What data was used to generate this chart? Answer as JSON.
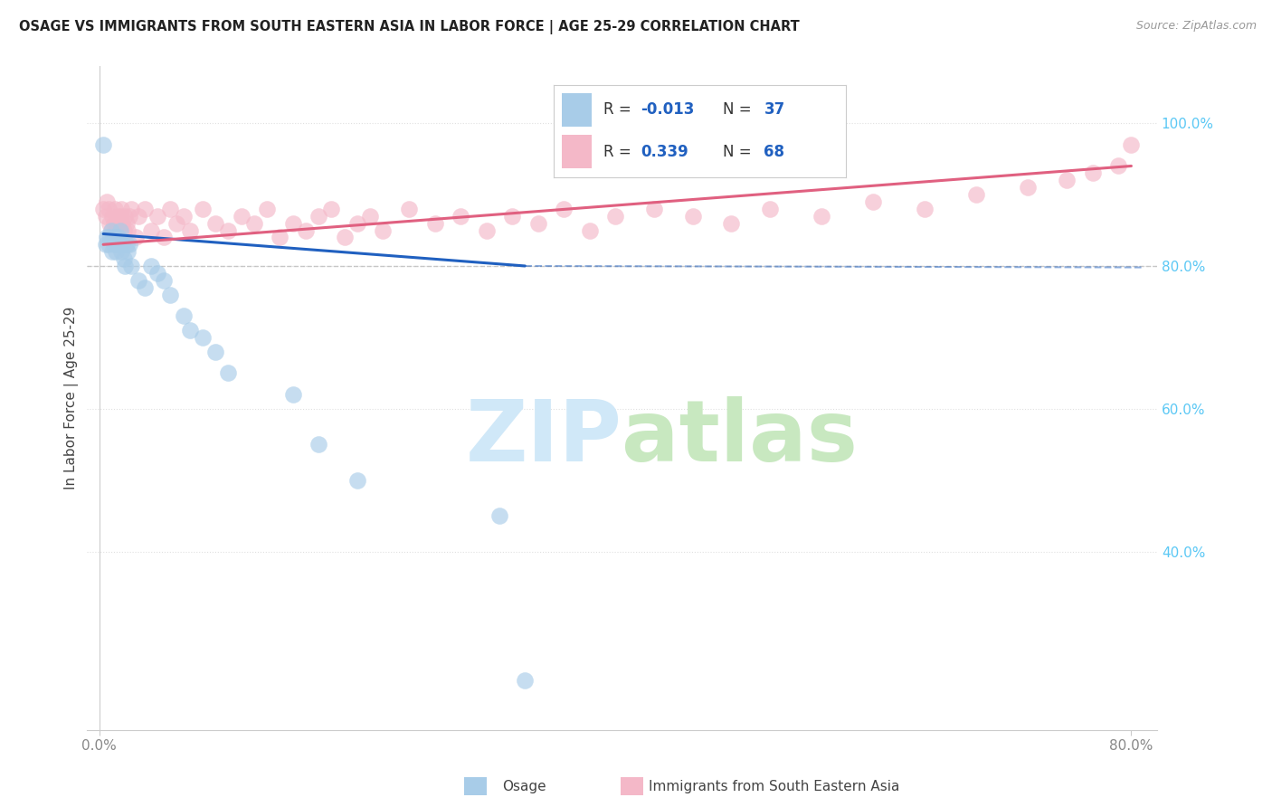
{
  "title": "OSAGE VS IMMIGRANTS FROM SOUTH EASTERN ASIA IN LABOR FORCE | AGE 25-29 CORRELATION CHART",
  "source": "Source: ZipAtlas.com",
  "ylabel": "In Labor Force | Age 25-29",
  "xlim": [
    -0.01,
    0.82
  ],
  "ylim": [
    0.15,
    1.08
  ],
  "yticks_right": [
    0.4,
    0.6,
    0.8,
    1.0
  ],
  "ytick_right_labels": [
    "40.0%",
    "60.0%",
    "80.0%",
    "100.0%"
  ],
  "legend_r_blue": "-0.013",
  "legend_n_blue": "37",
  "legend_r_pink": "0.339",
  "legend_n_pink": "68",
  "blue_color": "#a8cce8",
  "pink_color": "#f4b8c8",
  "trend_blue": "#2060c0",
  "trend_pink": "#e06080",
  "watermark_zip": "ZIP",
  "watermark_atlas": "atlas",
  "dashed_line_y": 0.8,
  "blue_dots_x": [
    0.003,
    0.005,
    0.006,
    0.007,
    0.008,
    0.009,
    0.01,
    0.011,
    0.012,
    0.013,
    0.014,
    0.015,
    0.016,
    0.017,
    0.018,
    0.019,
    0.02,
    0.021,
    0.022,
    0.023,
    0.025,
    0.03,
    0.035,
    0.04,
    0.045,
    0.05,
    0.055,
    0.065,
    0.07,
    0.08,
    0.09,
    0.1,
    0.15,
    0.17,
    0.2,
    0.31,
    0.33
  ],
  "blue_dots_y": [
    0.97,
    0.83,
    0.84,
    0.83,
    0.84,
    0.85,
    0.82,
    0.83,
    0.84,
    0.82,
    0.83,
    0.84,
    0.85,
    0.82,
    0.83,
    0.81,
    0.8,
    0.83,
    0.82,
    0.83,
    0.8,
    0.78,
    0.77,
    0.8,
    0.79,
    0.78,
    0.76,
    0.73,
    0.71,
    0.7,
    0.68,
    0.65,
    0.62,
    0.55,
    0.5,
    0.45,
    0.22
  ],
  "pink_dots_x": [
    0.003,
    0.005,
    0.006,
    0.007,
    0.008,
    0.009,
    0.01,
    0.011,
    0.012,
    0.013,
    0.014,
    0.015,
    0.016,
    0.017,
    0.018,
    0.019,
    0.02,
    0.021,
    0.022,
    0.023,
    0.025,
    0.028,
    0.03,
    0.035,
    0.04,
    0.045,
    0.05,
    0.055,
    0.06,
    0.065,
    0.07,
    0.08,
    0.09,
    0.1,
    0.11,
    0.12,
    0.13,
    0.14,
    0.15,
    0.16,
    0.17,
    0.18,
    0.19,
    0.2,
    0.21,
    0.22,
    0.24,
    0.26,
    0.28,
    0.3,
    0.32,
    0.34,
    0.36,
    0.38,
    0.4,
    0.43,
    0.46,
    0.49,
    0.52,
    0.56,
    0.6,
    0.64,
    0.68,
    0.72,
    0.75,
    0.77,
    0.79,
    0.8
  ],
  "pink_dots_y": [
    0.88,
    0.87,
    0.89,
    0.88,
    0.86,
    0.85,
    0.87,
    0.86,
    0.88,
    0.85,
    0.87,
    0.86,
    0.87,
    0.88,
    0.86,
    0.85,
    0.87,
    0.86,
    0.85,
    0.87,
    0.88,
    0.84,
    0.87,
    0.88,
    0.85,
    0.87,
    0.84,
    0.88,
    0.86,
    0.87,
    0.85,
    0.88,
    0.86,
    0.85,
    0.87,
    0.86,
    0.88,
    0.84,
    0.86,
    0.85,
    0.87,
    0.88,
    0.84,
    0.86,
    0.87,
    0.85,
    0.88,
    0.86,
    0.87,
    0.85,
    0.87,
    0.86,
    0.88,
    0.85,
    0.87,
    0.88,
    0.87,
    0.86,
    0.88,
    0.87,
    0.89,
    0.88,
    0.9,
    0.91,
    0.92,
    0.93,
    0.94,
    0.97
  ],
  "blue_trend_x": [
    0.003,
    0.33
  ],
  "blue_trend_y": [
    0.845,
    0.8
  ],
  "pink_trend_x": [
    0.003,
    0.8
  ],
  "pink_trend_y": [
    0.83,
    0.94
  ],
  "grid_color": "#e0e0e0",
  "background_color": "#ffffff"
}
